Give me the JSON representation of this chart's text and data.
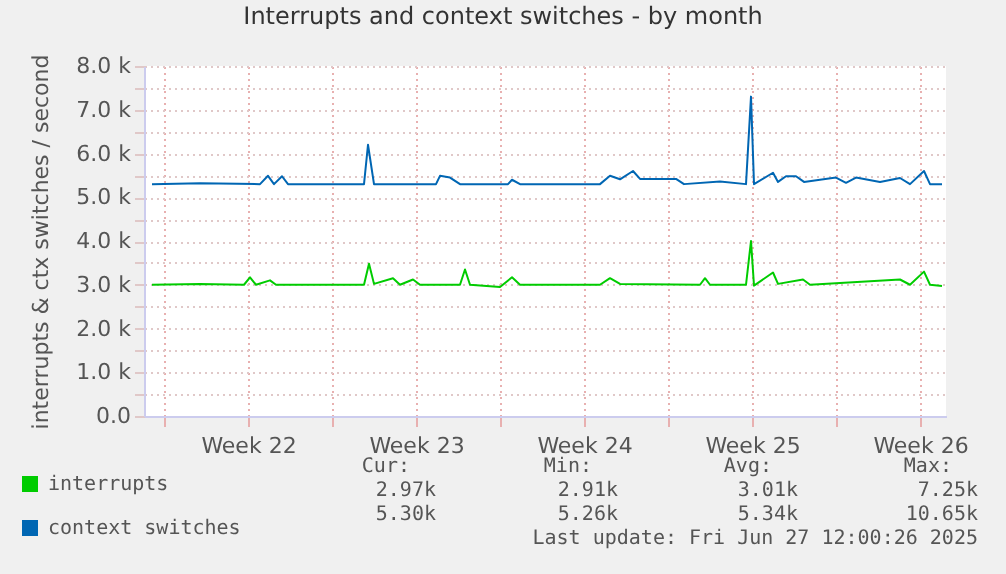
{
  "chart_data": {
    "type": "line",
    "title": "Interrupts and context switches - by month",
    "ylabel": "interrupts & ctx switches / second",
    "xlim": [
      "2025-05-25T04:00",
      "2025-06-27T14:00"
    ],
    "xticks": [
      {
        "value": "2025-05-26",
        "label": null
      },
      {
        "value": "2025-05-29T12:00",
        "label": "Week 22"
      },
      {
        "value": "2025-06-02",
        "label": null
      },
      {
        "value": "2025-06-05T12:00",
        "label": "Week 23"
      },
      {
        "value": "2025-06-09",
        "label": null
      },
      {
        "value": "2025-06-12T12:00",
        "label": "Week 24"
      },
      {
        "value": "2025-06-16",
        "label": null
      },
      {
        "value": "2025-06-19T12:00",
        "label": "Week 25"
      },
      {
        "value": "2025-06-23",
        "label": null
      },
      {
        "value": "2025-06-26T12:00",
        "label": "Week 26"
      }
    ],
    "ylim": [
      0,
      8000
    ],
    "yticks": [
      {
        "value": 0,
        "label": "0.0"
      },
      {
        "value": 500,
        "label": null
      },
      {
        "value": 1000,
        "label": "1.0 k"
      },
      {
        "value": 1500,
        "label": null
      },
      {
        "value": 2000,
        "label": "2.0 k"
      },
      {
        "value": 2500,
        "label": null
      },
      {
        "value": 3000,
        "label": "3.0 k"
      },
      {
        "value": 3500,
        "label": null
      },
      {
        "value": 4000,
        "label": "4.0 k"
      },
      {
        "value": 4500,
        "label": null
      },
      {
        "value": 5000,
        "label": "5.0 k"
      },
      {
        "value": 5500,
        "label": null
      },
      {
        "value": 6000,
        "label": "6.0 k"
      },
      {
        "value": 6500,
        "label": null
      },
      {
        "value": 7000,
        "label": "7.0 k"
      },
      {
        "value": 7500,
        "label": null
      },
      {
        "value": 8000,
        "label": "8.0 k"
      }
    ],
    "grid": true,
    "legend": "bottom left",
    "series": [
      {
        "name": "interrupts",
        "color": "#00cc00",
        "x": [
          "2025-05-25T12:00",
          "2025-05-27T12:00",
          "2025-05-29T08:00",
          "2025-05-29T14:00",
          "2025-05-29T20:00",
          "2025-05-30T10:00",
          "2025-05-30T16:00",
          "2025-06-03T08:00",
          "2025-06-03T13:00",
          "2025-06-03T18:00",
          "2025-06-04T13:00",
          "2025-06-04T20:00",
          "2025-06-05T09:00",
          "2025-06-05T16:00",
          "2025-06-07T08:00",
          "2025-06-07T13:00",
          "2025-06-07T18:00",
          "2025-06-09T00:00",
          "2025-06-09T12:00",
          "2025-06-09T20:00",
          "2025-06-13T04:00",
          "2025-06-13T14:00",
          "2025-06-14T00:00",
          "2025-06-17T08:00",
          "2025-06-17T13:00",
          "2025-06-17T18:00",
          "2025-06-19T06:00",
          "2025-06-19T11:00",
          "2025-06-19T14:00",
          "2025-06-20T09:00",
          "2025-06-20T14:00",
          "2025-06-21T15:00",
          "2025-06-21T22:00",
          "2025-06-25T16:00",
          "2025-06-26T02:00",
          "2025-06-26T16:00",
          "2025-06-26T22:00",
          "2025-06-27T10:00"
        ],
        "values": [
          3000,
          3020,
          3000,
          3170,
          3000,
          3100,
          3000,
          3000,
          3480,
          3020,
          3150,
          3000,
          3120,
          3000,
          3000,
          3350,
          3000,
          2950,
          3170,
          3000,
          3000,
          3150,
          3020,
          3000,
          3150,
          3000,
          3000,
          4000,
          2980,
          3280,
          3020,
          3120,
          3000,
          3120,
          3000,
          3300,
          3000,
          2970
        ]
      },
      {
        "name": "context switches",
        "color": "#0066b3",
        "x": [
          "2025-05-25T12:00",
          "2025-05-27T12:00",
          "2025-05-30T00:00",
          "2025-05-30T08:00",
          "2025-05-30T14:00",
          "2025-05-30T22:00",
          "2025-05-31T04:00",
          "2025-06-03T08:00",
          "2025-06-03T12:00",
          "2025-06-03T18:00",
          "2025-06-06T08:00",
          "2025-06-06T12:00",
          "2025-06-06T22:00",
          "2025-06-07T08:00",
          "2025-06-09T08:00",
          "2025-06-09T12:00",
          "2025-06-09T20:00",
          "2025-06-13T04:00",
          "2025-06-13T14:00",
          "2025-06-14T00:00",
          "2025-06-14T13:00",
          "2025-06-14T20:00",
          "2025-06-16T08:00",
          "2025-06-16T16:00",
          "2025-06-18T04:00",
          "2025-06-19T06:00",
          "2025-06-19T11:00",
          "2025-06-19T14:00",
          "2025-06-20T09:00",
          "2025-06-20T14:00",
          "2025-06-20T22:00",
          "2025-06-21T08:00",
          "2025-06-21T16:00",
          "2025-06-23T00:00",
          "2025-06-23T10:00",
          "2025-06-23T20:00",
          "2025-06-24T20:00",
          "2025-06-25T16:00",
          "2025-06-26T02:00",
          "2025-06-26T16:00",
          "2025-06-26T22:00",
          "2025-06-27T10:00"
        ],
        "values": [
          5300,
          5320,
          5300,
          5490,
          5300,
          5480,
          5300,
          5300,
          6200,
          5300,
          5300,
          5490,
          5450,
          5300,
          5300,
          5400,
          5300,
          5300,
          5490,
          5410,
          5600,
          5420,
          5420,
          5300,
          5360,
          5300,
          7300,
          5300,
          5560,
          5350,
          5480,
          5480,
          5350,
          5450,
          5330,
          5450,
          5350,
          5440,
          5300,
          5600,
          5300,
          5300
        ]
      }
    ],
    "annotations": [
      "Cur:",
      "Min:",
      "Avg:",
      "Max:",
      "2.97k",
      "2.91k",
      "3.01k",
      "7.25k",
      "5.30k",
      "5.26k",
      "5.34k",
      "10.65k",
      "Last update: Fri Jun 27 12:00:26 2025"
    ]
  }
}
